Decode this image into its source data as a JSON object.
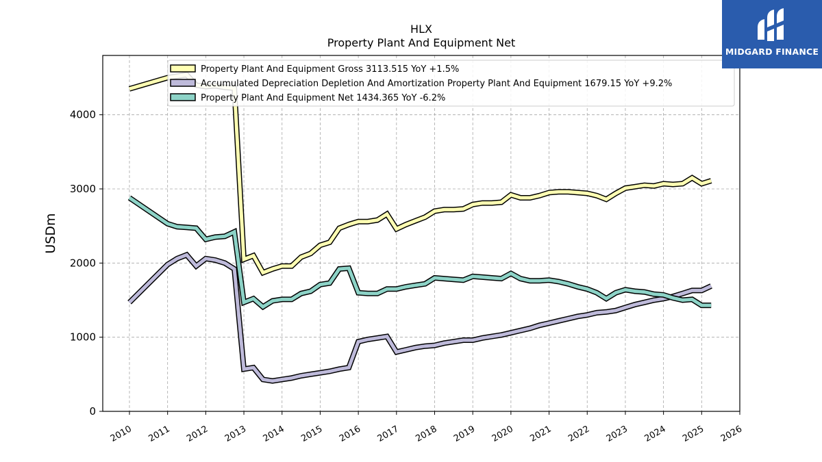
{
  "brand": {
    "name": "MIDGARD FINANCE",
    "background": "#2a5cad"
  },
  "chart_data": {
    "type": "line",
    "title": "HLX",
    "subtitle": "Property Plant And Equipment Net",
    "xlabel": "",
    "ylabel": "USDm",
    "xlim": [
      2009.3,
      2026.0
    ],
    "ylim": [
      0,
      4800
    ],
    "x_ticks": [
      "2010",
      "2011",
      "2012",
      "2013",
      "2014",
      "2015",
      "2016",
      "2017",
      "2018",
      "2019",
      "2020",
      "2021",
      "2022",
      "2023",
      "2024",
      "2025",
      "2026"
    ],
    "y_ticks": [
      "0",
      "1000",
      "2000",
      "3000",
      "4000"
    ],
    "grid": true,
    "legend_position": "top-center",
    "series": [
      {
        "name": "Property Plant And Equipment Gross",
        "legend_label": "Property Plant And Equipment Gross  3113.515 YoY +1.5%",
        "color": "#ffffb3",
        "x": [
          2010.0,
          2011.0,
          2011.25,
          2011.5,
          2011.75,
          2012.0,
          2012.25,
          2012.5,
          2012.75,
          2013.0,
          2013.25,
          2013.5,
          2013.75,
          2014.0,
          2014.25,
          2014.5,
          2014.75,
          2015.0,
          2015.25,
          2015.5,
          2015.75,
          2016.0,
          2016.25,
          2016.5,
          2016.75,
          2017.0,
          2017.25,
          2017.5,
          2017.75,
          2018.0,
          2018.25,
          2018.5,
          2018.75,
          2019.0,
          2019.25,
          2019.5,
          2019.75,
          2020.0,
          2020.25,
          2020.5,
          2020.75,
          2021.0,
          2021.25,
          2021.5,
          2021.75,
          2022.0,
          2022.25,
          2022.5,
          2022.75,
          2023.0,
          2023.25,
          2023.5,
          2023.75,
          2024.0,
          2024.25,
          2024.5,
          2024.75,
          2025.0,
          2025.25
        ],
        "y": [
          4350,
          4500,
          4520,
          4540,
          4400,
          4380,
          4390,
          4370,
          4360,
          2050,
          2100,
          1870,
          1920,
          1960,
          1960,
          2080,
          2130,
          2240,
          2280,
          2470,
          2520,
          2560,
          2560,
          2580,
          2660,
          2460,
          2520,
          2570,
          2620,
          2700,
          2720,
          2720,
          2730,
          2790,
          2810,
          2810,
          2820,
          2920,
          2880,
          2880,
          2910,
          2950,
          2960,
          2960,
          2950,
          2940,
          2910,
          2860,
          2940,
          3010,
          3030,
          3050,
          3040,
          3070,
          3060,
          3070,
          3150,
          3070,
          3110
        ]
      },
      {
        "name": "Accumulated Depreciation Depletion And Amortization Property Plant And Equipment",
        "legend_label": "Accumulated Depreciation Depletion And Amortization Property Plant And Equipment  1679.15 YoY +9.2%",
        "color": "#bebada",
        "x": [
          2010.0,
          2011.0,
          2011.25,
          2011.5,
          2011.75,
          2012.0,
          2012.25,
          2012.5,
          2012.75,
          2013.0,
          2013.25,
          2013.5,
          2013.75,
          2014.0,
          2014.25,
          2014.5,
          2014.75,
          2015.0,
          2015.25,
          2015.5,
          2015.75,
          2016.0,
          2016.25,
          2016.5,
          2016.75,
          2017.0,
          2017.25,
          2017.5,
          2017.75,
          2018.0,
          2018.25,
          2018.5,
          2018.75,
          2019.0,
          2019.25,
          2019.5,
          2019.75,
          2020.0,
          2020.25,
          2020.5,
          2020.75,
          2021.0,
          2021.25,
          2021.5,
          2021.75,
          2022.0,
          2022.25,
          2022.5,
          2022.75,
          2023.0,
          2023.25,
          2023.5,
          2023.75,
          2024.0,
          2024.25,
          2024.5,
          2024.75,
          2025.0,
          2025.25
        ],
        "y": [
          1470,
          1980,
          2060,
          2110,
          1960,
          2060,
          2040,
          2000,
          1920,
          570,
          590,
          430,
          410,
          430,
          450,
          480,
          500,
          520,
          540,
          570,
          590,
          940,
          970,
          990,
          1010,
          800,
          830,
          860,
          880,
          890,
          920,
          940,
          960,
          960,
          990,
          1010,
          1030,
          1060,
          1090,
          1120,
          1160,
          1190,
          1220,
          1250,
          1280,
          1300,
          1330,
          1340,
          1360,
          1400,
          1440,
          1470,
          1500,
          1520,
          1550,
          1590,
          1630,
          1630,
          1690
        ]
      },
      {
        "name": "Property Plant And Equipment Net",
        "legend_label": "Property Plant And Equipment Net  1434.365 YoY -6.2%",
        "color": "#8dd3c7",
        "x": [
          2010.0,
          2011.0,
          2011.25,
          2011.5,
          2011.75,
          2012.0,
          2012.25,
          2012.5,
          2012.75,
          2013.0,
          2013.25,
          2013.5,
          2013.75,
          2014.0,
          2014.25,
          2014.5,
          2014.75,
          2015.0,
          2015.25,
          2015.5,
          2015.75,
          2016.0,
          2016.25,
          2016.5,
          2016.75,
          2017.0,
          2017.25,
          2017.5,
          2017.75,
          2018.0,
          2018.25,
          2018.5,
          2018.75,
          2019.0,
          2019.25,
          2019.5,
          2019.75,
          2020.0,
          2020.25,
          2020.5,
          2020.75,
          2021.0,
          2021.25,
          2021.5,
          2021.75,
          2022.0,
          2022.25,
          2022.5,
          2022.75,
          2023.0,
          2023.25,
          2023.5,
          2023.75,
          2024.0,
          2024.25,
          2024.5,
          2024.75,
          2025.0,
          2025.25
        ],
        "y": [
          2880,
          2530,
          2490,
          2480,
          2470,
          2320,
          2350,
          2360,
          2420,
          1470,
          1520,
          1410,
          1490,
          1510,
          1510,
          1590,
          1620,
          1710,
          1730,
          1920,
          1930,
          1600,
          1590,
          1590,
          1650,
          1650,
          1680,
          1700,
          1720,
          1800,
          1790,
          1780,
          1770,
          1820,
          1810,
          1800,
          1790,
          1860,
          1790,
          1760,
          1760,
          1770,
          1750,
          1720,
          1680,
          1650,
          1600,
          1520,
          1600,
          1640,
          1620,
          1610,
          1580,
          1570,
          1530,
          1500,
          1510,
          1430,
          1430
        ]
      }
    ]
  }
}
